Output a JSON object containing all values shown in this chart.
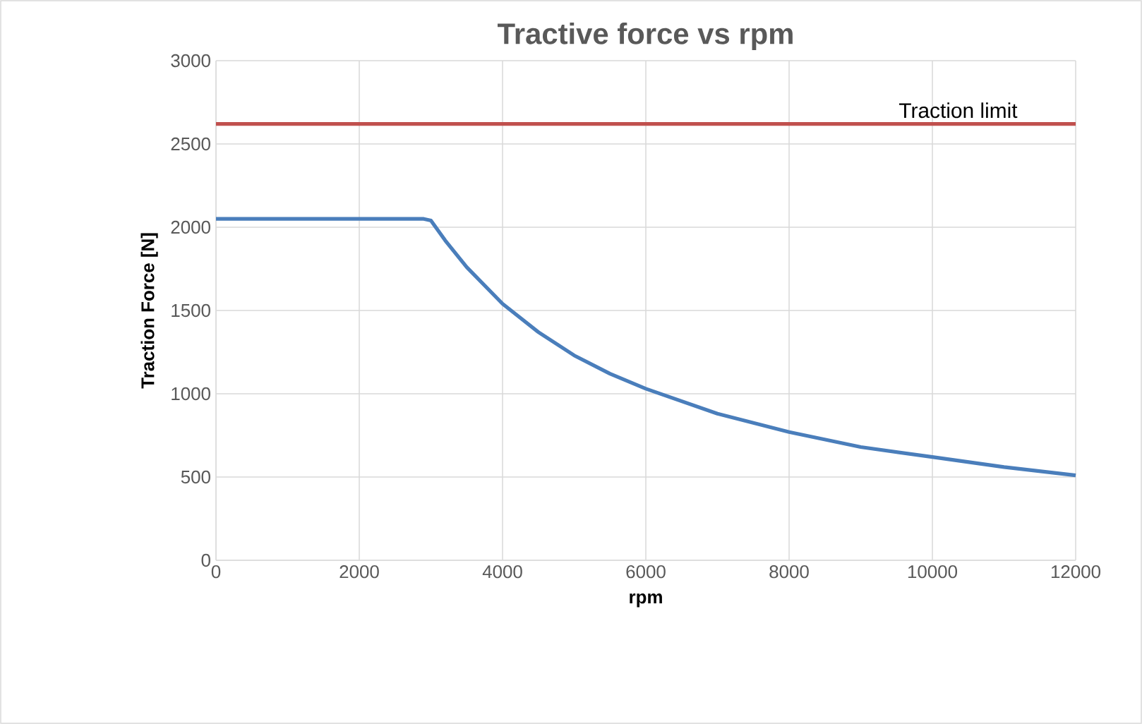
{
  "chart_data": {
    "type": "line",
    "title": "Tractive force vs rpm",
    "xlabel": "rpm",
    "ylabel": "Traction Force [N]",
    "series": [
      {
        "name": null,
        "color": "#4a7ebb",
        "x": [
          0,
          1000,
          2000,
          2900,
          3000,
          3200,
          3500,
          4000,
          4500,
          5000,
          5500,
          6000,
          7000,
          8000,
          9000,
          10000,
          11000,
          12000
        ],
        "values": [
          2050,
          2050,
          2050,
          2050,
          2040,
          1920,
          1760,
          1540,
          1370,
          1230,
          1120,
          1030,
          880,
          770,
          680,
          620,
          560,
          510
        ]
      },
      {
        "name": "Traction limit",
        "color": "#c0504d",
        "x": [
          0,
          12000
        ],
        "values": [
          2620,
          2620
        ]
      }
    ],
    "xlim": [
      0,
      12000
    ],
    "xticks": [
      0,
      2000,
      4000,
      6000,
      8000,
      10000,
      12000
    ],
    "ylim": [
      0,
      3000
    ],
    "yticks": [
      0,
      500,
      1000,
      1500,
      2000,
      2500,
      3000
    ],
    "grid": true,
    "legend": false,
    "marker": "none",
    "line_style": "solid"
  }
}
